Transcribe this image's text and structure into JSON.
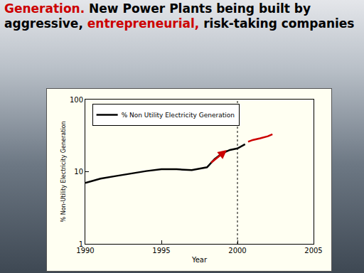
{
  "chart_data": {
    "type": "line",
    "title": [
      [
        {
          "text": "Generation.",
          "color": "#cc0000"
        },
        {
          "text": " New Power Plants being built by",
          "color": "#000000"
        }
      ],
      [
        {
          "text": "aggressive, ",
          "color": "#000000"
        },
        {
          "text": "entrepreneurial,",
          "color": "#cc0000"
        },
        {
          "text": " risk-taking companies",
          "color": "#000000"
        }
      ]
    ],
    "x_label": "Year",
    "y_label": "% Non-Utility Electricity Generation",
    "series": [
      {
        "name": "% Non Utility Electricity Generation",
        "color": "#000000",
        "x": [
          1990,
          1991,
          1992,
          1993,
          1994,
          1995,
          1996,
          1997,
          1998,
          1998.5,
          1999,
          1999.5,
          2000,
          2000.5
        ],
        "values": [
          7,
          8,
          8.7,
          9.5,
          10.2,
          10.8,
          10.8,
          10.5,
          11.5,
          15,
          18,
          20,
          21,
          24
        ]
      },
      {
        "color": "#cc0000",
        "x": [
          2000.7,
          2001,
          2001.5,
          2002,
          2002.3
        ],
        "values": [
          26,
          27.5,
          29,
          31,
          33
        ]
      }
    ],
    "xlim": [
      1990,
      2005
    ],
    "xticks": [
      1990,
      1995,
      2000,
      2005
    ],
    "ylim": [
      1,
      100
    ],
    "yticks": [
      1,
      10,
      100
    ],
    "log": "y",
    "legend": "top left",
    "vline_x": 2000,
    "arrow": {
      "x0": 1998.2,
      "y0": 13,
      "x1": 1999.3,
      "y1": 20,
      "color": "#cc0000"
    }
  }
}
